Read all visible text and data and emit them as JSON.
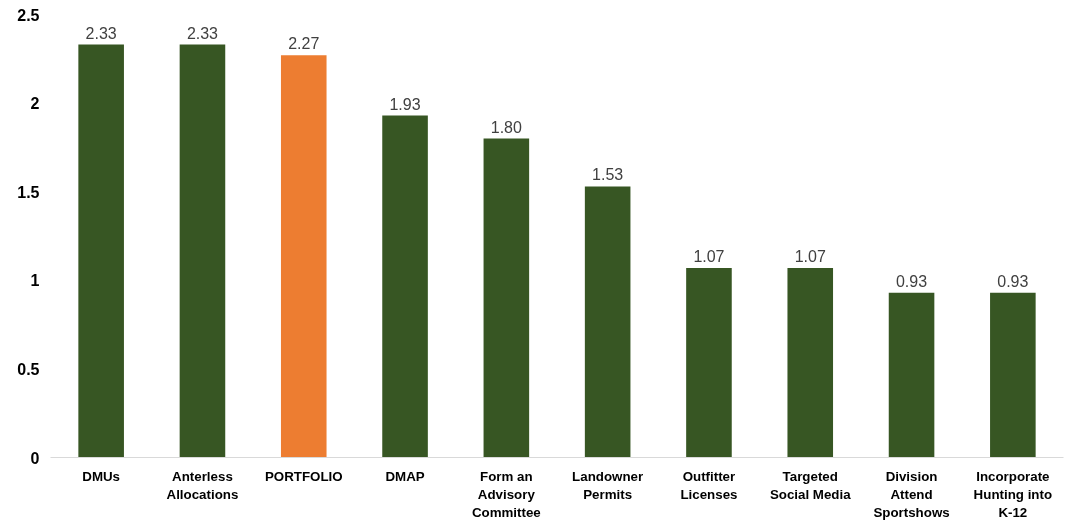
{
  "chart_data": {
    "type": "bar",
    "categories": [
      "DMUs",
      "Anterless Allocations",
      "PORTFOLIO",
      "DMAP",
      "Form an Advisory Committee",
      "Landowner Permits",
      "Outfitter Licenses",
      "Targeted Social Media",
      "Division Attend Sportshows",
      "Incorporate Hunting into K-12"
    ],
    "values": [
      2.33,
      2.33,
      2.27,
      1.93,
      1.8,
      1.53,
      1.07,
      1.07,
      0.93,
      0.93
    ],
    "colors": [
      "#375623",
      "#375623",
      "#ed7d31",
      "#375623",
      "#375623",
      "#375623",
      "#375623",
      "#375623",
      "#375623",
      "#375623"
    ],
    "value_labels": [
      "2.33",
      "2.33",
      "2.27",
      "1.93",
      "1.80",
      "1.53",
      "1.07",
      "1.07",
      "0.93",
      "0.93"
    ],
    "ylim": [
      0,
      2.5
    ],
    "yticks": [
      0,
      0.5,
      1,
      1.5,
      2,
      2.5
    ],
    "grid": false
  }
}
